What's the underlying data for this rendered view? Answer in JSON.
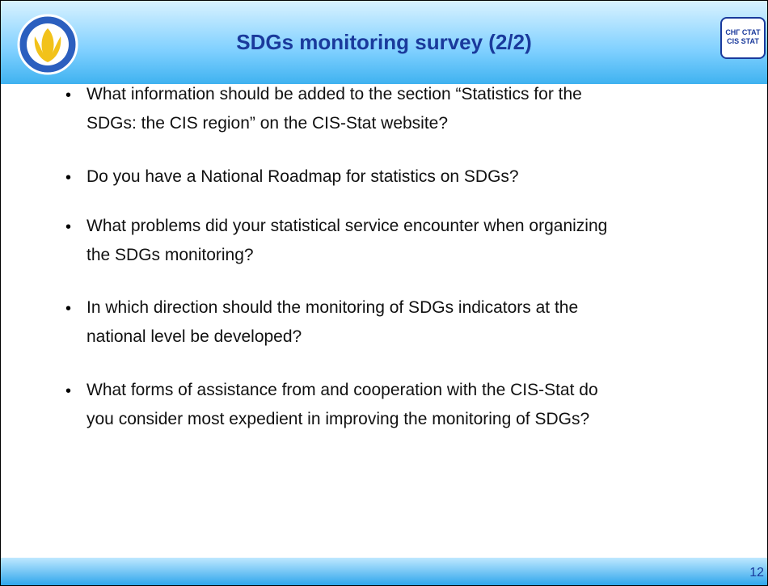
{
  "header": {
    "title": "SDGs monitoring survey (2/2)",
    "logo_right": [
      "СНГ СТАТ",
      "CIS STAT"
    ]
  },
  "bullets": [
    [
      "What information should be added to the section “Statistics for the",
      "SDGs: the CIS region” on the CIS-Stat website?"
    ],
    [
      "Do you have a National Roadmap for statistics on SDGs?"
    ],
    [
      "What problems did your statistical service encounter when organizing",
      "the SDGs monitoring?"
    ],
    [
      "In which direction should the monitoring of SDGs indicators at the",
      "national level be developed?"
    ],
    [
      "What  forms of assistance from and cooperation with the CIS-Stat do",
      "you consider most expedient in improving the monitoring of SDGs?"
    ]
  ],
  "footer": {
    "page": "12"
  }
}
